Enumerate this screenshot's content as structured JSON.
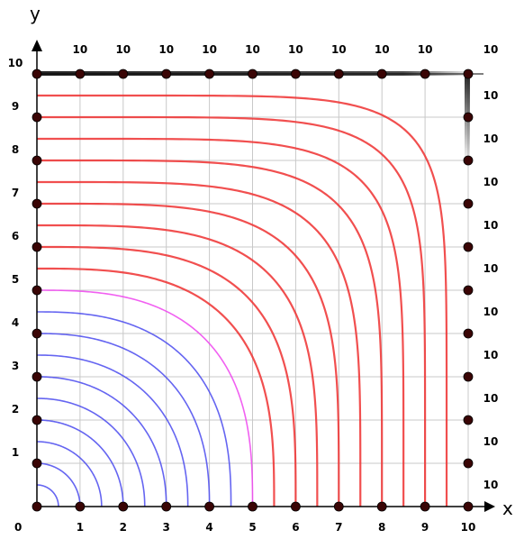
{
  "chart_data": {
    "type": "line",
    "title": "",
    "xlabel": "x",
    "ylabel": "y",
    "xlim": [
      0,
      10
    ],
    "ylim": [
      0,
      10
    ],
    "grid": true,
    "x_ticks": [
      "1",
      "2",
      "3",
      "4",
      "5",
      "6",
      "7",
      "8",
      "9",
      "10"
    ],
    "y_ticks": [
      "1",
      "2",
      "3",
      "4",
      "5",
      "6",
      "7",
      "8",
      "9",
      "10"
    ],
    "origin_label": "0",
    "top_edge_labels": [
      "10",
      "10",
      "10",
      "10",
      "10",
      "10",
      "10",
      "10",
      "10",
      "10"
    ],
    "right_edge_labels": [
      "10",
      "10",
      "10",
      "10",
      "10",
      "10",
      "10",
      "10",
      "10",
      "10"
    ],
    "colors": {
      "blue": "#4a4aee",
      "magenta": "#ee44ee",
      "red": "#ee3030",
      "grid": "#c8c8c8",
      "axis": "#000000",
      "point": "#3a0505"
    },
    "series": [
      {
        "color": "blue",
        "intercept": 0.5
      },
      {
        "color": "blue",
        "intercept": 1.0
      },
      {
        "color": "blue",
        "intercept": 1.5
      },
      {
        "color": "blue",
        "intercept": 2.0
      },
      {
        "color": "blue",
        "intercept": 2.5
      },
      {
        "color": "blue",
        "intercept": 3.0
      },
      {
        "color": "blue",
        "intercept": 3.5
      },
      {
        "color": "blue",
        "intercept": 4.0
      },
      {
        "color": "blue",
        "intercept": 4.5
      },
      {
        "color": "magenta",
        "intercept": 5.0
      },
      {
        "color": "red",
        "intercept": 5.5
      },
      {
        "color": "red",
        "intercept": 6.0
      },
      {
        "color": "red",
        "intercept": 6.5
      },
      {
        "color": "red",
        "intercept": 7.0
      },
      {
        "color": "red",
        "intercept": 7.5
      },
      {
        "color": "red",
        "intercept": 8.0
      },
      {
        "color": "red",
        "intercept": 8.5
      },
      {
        "color": "red",
        "intercept": 9.0
      },
      {
        "color": "red",
        "intercept": 9.5
      }
    ]
  }
}
